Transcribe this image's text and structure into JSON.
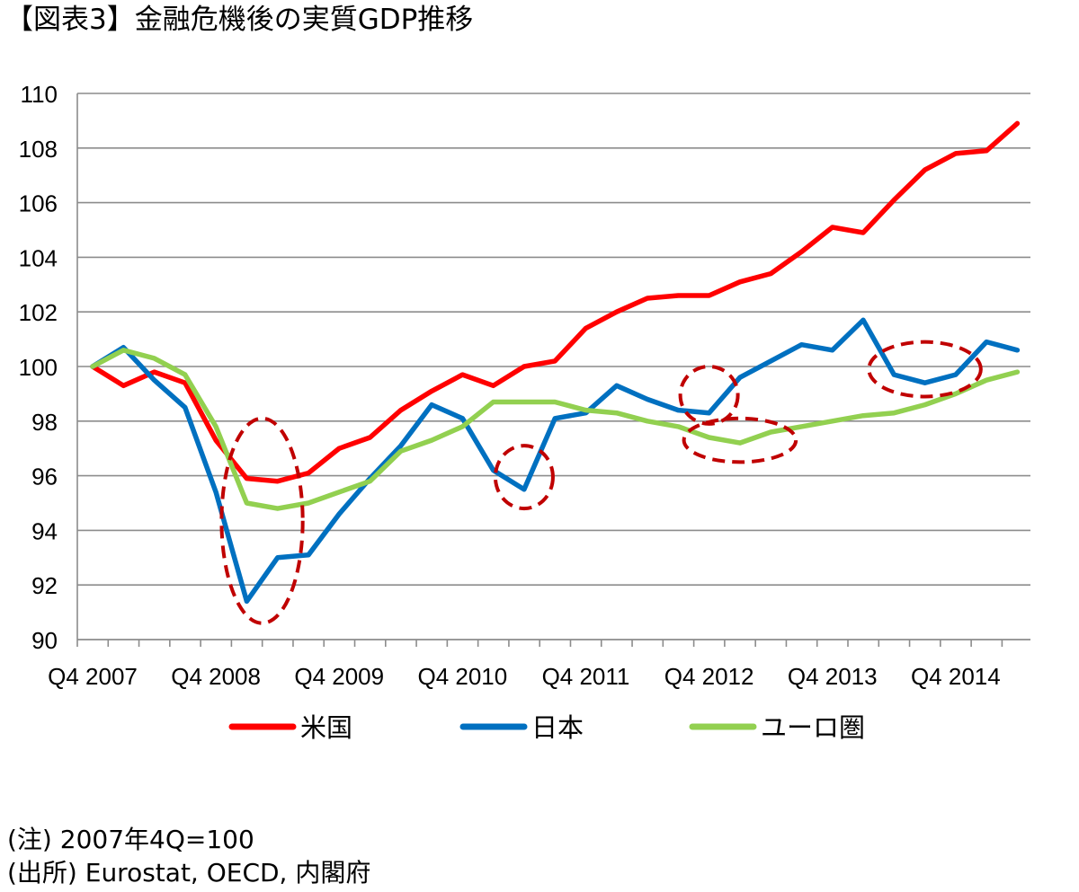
{
  "title": "【図表3】金融危機後の実質GDP推移",
  "notes": {
    "note1": "(注) 2007年4Q=100",
    "note2": "(出所) Eurostat, OECD, 内閣府"
  },
  "chart_data": {
    "type": "line",
    "title": "【図表3】金融危機後の実質GDP推移",
    "xlabel": "",
    "ylabel": "",
    "ylim": [
      90,
      110
    ],
    "yticks": [
      90,
      92,
      94,
      96,
      98,
      100,
      102,
      104,
      106,
      108,
      110
    ],
    "grid": true,
    "legend_position": "bottom",
    "x": [
      "Q4 2007",
      "Q1 2008",
      "Q2 2008",
      "Q3 2008",
      "Q4 2008",
      "Q1 2009",
      "Q2 2009",
      "Q3 2009",
      "Q4 2009",
      "Q1 2010",
      "Q2 2010",
      "Q3 2010",
      "Q4 2010",
      "Q1 2011",
      "Q2 2011",
      "Q3 2011",
      "Q4 2011",
      "Q1 2012",
      "Q2 2012",
      "Q3 2012",
      "Q4 2012",
      "Q1 2013",
      "Q2 2013",
      "Q3 2013",
      "Q4 2013",
      "Q1 2014",
      "Q2 2014",
      "Q3 2014",
      "Q4 2014",
      "Q1 2015",
      "Q2 2015"
    ],
    "x_tick_labels": [
      "Q4 2007",
      "Q4 2008",
      "Q4 2009",
      "Q4 2010",
      "Q4 2011",
      "Q4 2012",
      "Q4 2013",
      "Q4 2014"
    ],
    "series": [
      {
        "name": "米国",
        "color": "#ff0000",
        "values": [
          100.0,
          99.3,
          99.8,
          99.4,
          97.3,
          95.9,
          95.8,
          96.1,
          97.0,
          97.4,
          98.4,
          99.1,
          99.7,
          99.3,
          100.0,
          100.2,
          101.4,
          102.0,
          102.5,
          102.6,
          102.6,
          103.1,
          103.4,
          104.2,
          105.1,
          104.9,
          106.1,
          107.2,
          107.8,
          107.9,
          108.9
        ]
      },
      {
        "name": "日本",
        "color": "#0070c0",
        "values": [
          100.0,
          100.7,
          99.5,
          98.5,
          95.4,
          91.4,
          93.0,
          93.1,
          94.6,
          95.9,
          97.1,
          98.6,
          98.1,
          96.2,
          95.5,
          98.1,
          98.3,
          99.3,
          98.8,
          98.4,
          98.3,
          99.6,
          100.2,
          100.8,
          100.6,
          101.7,
          99.7,
          99.4,
          99.7,
          100.9,
          100.6
        ]
      },
      {
        "name": "ユーロ圏",
        "color": "#92d050",
        "values": [
          100.0,
          100.6,
          100.3,
          99.7,
          97.8,
          95.0,
          94.8,
          95.0,
          95.4,
          95.8,
          96.9,
          97.3,
          97.8,
          98.7,
          98.7,
          98.7,
          98.4,
          98.3,
          98.0,
          97.8,
          97.4,
          97.2,
          97.6,
          97.8,
          98.0,
          98.2,
          98.3,
          98.6,
          99.0,
          99.5,
          99.8
        ]
      }
    ],
    "annotations": [
      {
        "shape": "dashed-ellipse",
        "color": "#c00000",
        "around": "Q1 2009 - Q2 2009",
        "ymin": 90.6,
        "ymax": 98.1
      },
      {
        "shape": "dashed-ellipse",
        "color": "#c00000",
        "around": "Q2 2011",
        "ymin": 94.8,
        "ymax": 97.1
      },
      {
        "shape": "dashed-ellipse",
        "color": "#c00000",
        "around": "Q4 2012",
        "ymin": 97.9,
        "ymax": 100.0
      },
      {
        "shape": "dashed-ellipse",
        "color": "#c00000",
        "around": "Q4 2012 - Q2 2013",
        "ymin": 96.5,
        "ymax": 98.1
      },
      {
        "shape": "dashed-ellipse",
        "color": "#c00000",
        "around": "Q2 2014 - Q4 2014",
        "ymin": 98.9,
        "ymax": 100.9
      }
    ]
  }
}
